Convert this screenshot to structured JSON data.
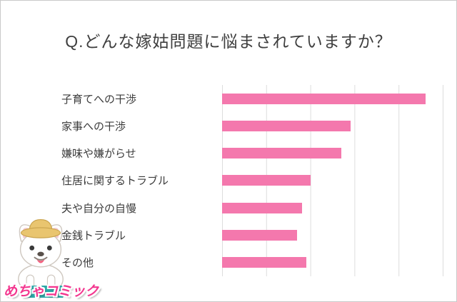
{
  "page": {
    "background": "#ffffff",
    "border_color": "#c9c9c9"
  },
  "header": {
    "title": "Q.どんな嫁姑問題に悩まされていますか？"
  },
  "chart_data": {
    "type": "bar",
    "orientation": "horizontal",
    "title": "Q.どんな嫁姑問題に悩まされていますか？",
    "categories": [
      "子育てへの干渉",
      "家事への干渉",
      "嫌味や嫌がらせ",
      "住居に関するトラブル",
      "夫や自分の自慢",
      "金銭トラブル",
      "その他"
    ],
    "values": [
      46,
      29,
      27,
      20,
      18,
      17,
      19
    ],
    "xlim": [
      0,
      50
    ],
    "gridline_interval": 10,
    "grid": true,
    "legend": false,
    "bar_color": "#f478ad",
    "gridline_color": "#dddddd",
    "label_color": "#3c3c3c"
  },
  "footer": {
    "logo_text": "めちゃコミック",
    "logo_color": "#f3368f",
    "logo_accent_color": "#2aa8a8",
    "mascot": "french-bulldog-with-straw-hat"
  }
}
